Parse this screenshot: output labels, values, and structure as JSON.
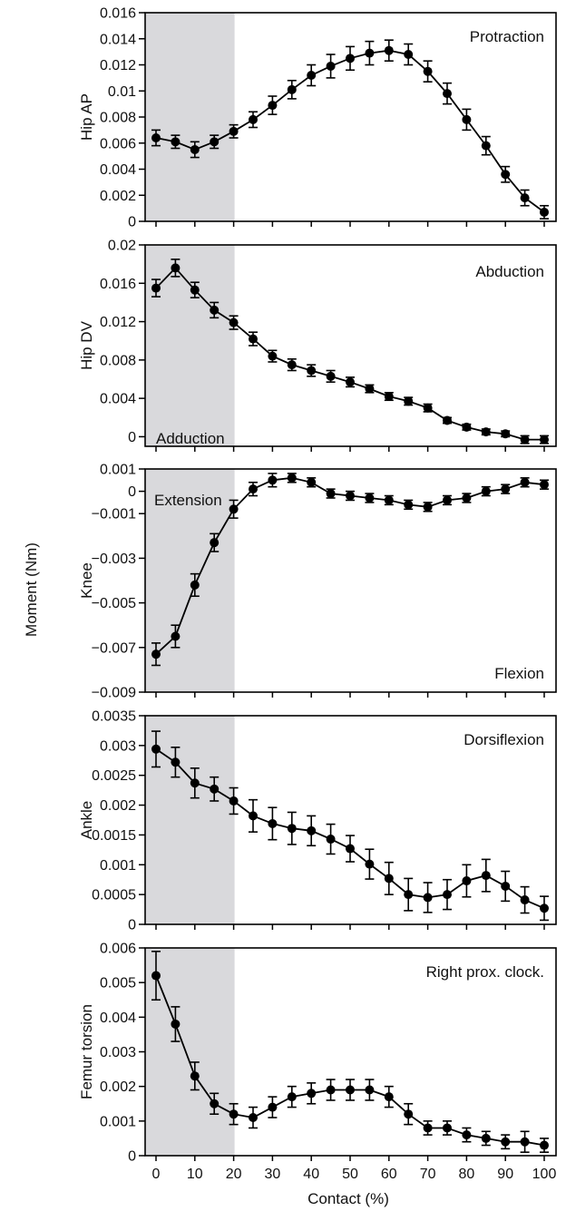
{
  "figure": {
    "ylabel": "Moment (Nm)",
    "xlabel": "Contact (%)"
  },
  "chart_data": [
    {
      "type": "line",
      "ylabel": "Hip AP",
      "annotations": [
        "Protraction"
      ],
      "ylim": [
        0,
        0.016
      ],
      "yticks": [
        0,
        0.002,
        0.004,
        0.006,
        0.008,
        0.01,
        0.012,
        0.014,
        0.016
      ],
      "ytick_labels": [
        "0",
        "0.002",
        "0.004",
        "0.006",
        "0.008",
        "0.01",
        "0.012",
        "0.014",
        "0.016"
      ],
      "xlim": [
        0,
        100
      ],
      "shaded_region": [
        0,
        20
      ],
      "x": [
        0,
        5,
        10,
        15,
        20,
        25,
        30,
        35,
        40,
        45,
        50,
        55,
        60,
        65,
        70,
        75,
        80,
        85,
        90,
        95,
        100
      ],
      "series": [
        {
          "values": [
            0.0064,
            0.0061,
            0.0055,
            0.0061,
            0.0069,
            0.0078,
            0.0089,
            0.0101,
            0.0112,
            0.0119,
            0.0125,
            0.0129,
            0.0131,
            0.0128,
            0.0115,
            0.0098,
            0.0078,
            0.0058,
            0.0036,
            0.0018,
            0.0007
          ],
          "error": [
            0.0006,
            0.0005,
            0.0006,
            0.0005,
            0.0005,
            0.0006,
            0.0007,
            0.0007,
            0.0008,
            0.0009,
            0.0009,
            0.0009,
            0.0008,
            0.0008,
            0.0008,
            0.0008,
            0.0008,
            0.0007,
            0.0006,
            0.0006,
            0.0005
          ]
        }
      ]
    },
    {
      "type": "line",
      "ylabel": "Hip DV",
      "annotations": [
        "Abduction",
        "Adduction"
      ],
      "ylim": [
        -0.001,
        0.02
      ],
      "yticks": [
        0,
        0.004,
        0.008,
        0.012,
        0.016,
        0.02
      ],
      "ytick_labels": [
        "0",
        "0.004",
        "0.008",
        "0.012",
        "0.016",
        "0.02"
      ],
      "xlim": [
        0,
        100
      ],
      "shaded_region": [
        0,
        20
      ],
      "x": [
        0,
        5,
        10,
        15,
        20,
        25,
        30,
        35,
        40,
        45,
        50,
        55,
        60,
        65,
        70,
        75,
        80,
        85,
        90,
        95,
        100
      ],
      "series": [
        {
          "values": [
            0.0155,
            0.0176,
            0.0153,
            0.0132,
            0.0119,
            0.0102,
            0.0084,
            0.0075,
            0.0069,
            0.0063,
            0.0057,
            0.005,
            0.0042,
            0.0037,
            0.003,
            0.0017,
            0.001,
            0.0005,
            0.0003,
            -0.0003,
            -0.0003
          ],
          "error": [
            0.0009,
            0.0009,
            0.0008,
            0.0008,
            0.0007,
            0.0007,
            0.0006,
            0.0006,
            0.0006,
            0.0006,
            0.0005,
            0.0004,
            0.0004,
            0.0004,
            0.0004,
            0.0003,
            0.0003,
            0.0003,
            0.0003,
            0.0004,
            0.0004
          ]
        }
      ]
    },
    {
      "type": "line",
      "ylabel": "Knee",
      "annotations": [
        "Extension",
        "Flexion"
      ],
      "ylim": [
        -0.009,
        0.001
      ],
      "yticks": [
        -0.009,
        -0.007,
        -0.005,
        -0.003,
        -0.001,
        0,
        0.001
      ],
      "ytick_labels": [
        "−0.009",
        "−0.007",
        "−0.005",
        "−0.003",
        "−0.001",
        "0",
        "0.001"
      ],
      "xlim": [
        0,
        100
      ],
      "shaded_region": [
        0,
        20
      ],
      "x": [
        0,
        5,
        10,
        15,
        20,
        25,
        30,
        35,
        40,
        45,
        50,
        55,
        60,
        65,
        70,
        75,
        80,
        85,
        90,
        95,
        100
      ],
      "series": [
        {
          "values": [
            -0.0073,
            -0.0065,
            -0.0042,
            -0.0023,
            -0.0008,
            0.0001,
            0.0005,
            0.0006,
            0.0004,
            -0.0001,
            -0.0002,
            -0.0003,
            -0.0004,
            -0.0006,
            -0.0007,
            -0.0004,
            -0.0003,
            0.0,
            0.0001,
            0.0004,
            0.0003
          ],
          "error": [
            0.0005,
            0.0005,
            0.0005,
            0.0004,
            0.0004,
            0.0003,
            0.0003,
            0.0002,
            0.0002,
            0.0002,
            0.0002,
            0.0002,
            0.0002,
            0.0002,
            0.0002,
            0.0002,
            0.0002,
            0.0002,
            0.0002,
            0.0002,
            0.0002
          ]
        }
      ]
    },
    {
      "type": "line",
      "ylabel": "Ankle",
      "annotations": [
        "Dorsiflexion"
      ],
      "ylim": [
        0,
        0.0035
      ],
      "yticks": [
        0,
        0.0005,
        0.001,
        0.0015,
        0.002,
        0.0025,
        0.003,
        0.0035
      ],
      "ytick_labels": [
        "0",
        "0.0005",
        "0.001",
        "0.0015",
        "0.002",
        "0.0025",
        "0.003",
        "0.0035"
      ],
      "xlim": [
        0,
        100
      ],
      "shaded_region": [
        0,
        20
      ],
      "x": [
        0,
        5,
        10,
        15,
        20,
        25,
        30,
        35,
        40,
        45,
        50,
        55,
        60,
        65,
        70,
        75,
        80,
        85,
        90,
        95,
        100
      ],
      "series": [
        {
          "values": [
            0.00294,
            0.00272,
            0.00237,
            0.00227,
            0.00207,
            0.00182,
            0.00169,
            0.00161,
            0.00157,
            0.00143,
            0.00127,
            0.00101,
            0.00077,
            0.0005,
            0.00045,
            0.0005,
            0.00073,
            0.00082,
            0.00064,
            0.00041,
            0.00027
          ],
          "error": [
            0.0003,
            0.00025,
            0.00025,
            0.0002,
            0.00022,
            0.00027,
            0.00027,
            0.00027,
            0.00025,
            0.00025,
            0.00022,
            0.00025,
            0.00027,
            0.00027,
            0.00025,
            0.00025,
            0.00027,
            0.00027,
            0.00025,
            0.00022,
            0.0002
          ]
        }
      ]
    },
    {
      "type": "line",
      "ylabel": "Femur torsion",
      "annotations": [
        "Right prox. clock."
      ],
      "ylim": [
        0,
        0.006
      ],
      "yticks": [
        0,
        0.001,
        0.002,
        0.003,
        0.004,
        0.005,
        0.006
      ],
      "ytick_labels": [
        "0",
        "0.001",
        "0.002",
        "0.003",
        "0.004",
        "0.005",
        "0.006"
      ],
      "xlim": [
        0,
        100
      ],
      "shaded_region": [
        0,
        20
      ],
      "xticks": [
        0,
        10,
        20,
        30,
        40,
        50,
        60,
        70,
        80,
        90,
        100
      ],
      "xtick_labels": [
        "0",
        "10",
        "20",
        "30",
        "40",
        "50",
        "60",
        "70",
        "80",
        "90",
        "100"
      ],
      "x": [
        0,
        5,
        10,
        15,
        20,
        25,
        30,
        35,
        40,
        45,
        50,
        55,
        60,
        65,
        70,
        75,
        80,
        85,
        90,
        95,
        100
      ],
      "series": [
        {
          "values": [
            0.0052,
            0.0038,
            0.0023,
            0.0015,
            0.0012,
            0.0011,
            0.0014,
            0.0017,
            0.0018,
            0.0019,
            0.0019,
            0.0019,
            0.0017,
            0.0012,
            0.0008,
            0.0008,
            0.0006,
            0.0005,
            0.0004,
            0.0004,
            0.0003
          ],
          "error": [
            0.0007,
            0.0005,
            0.0004,
            0.0003,
            0.0003,
            0.0003,
            0.0003,
            0.0003,
            0.0003,
            0.0003,
            0.0003,
            0.0003,
            0.0003,
            0.0003,
            0.0002,
            0.0002,
            0.0002,
            0.0002,
            0.0002,
            0.0003,
            0.0002
          ]
        }
      ]
    }
  ]
}
